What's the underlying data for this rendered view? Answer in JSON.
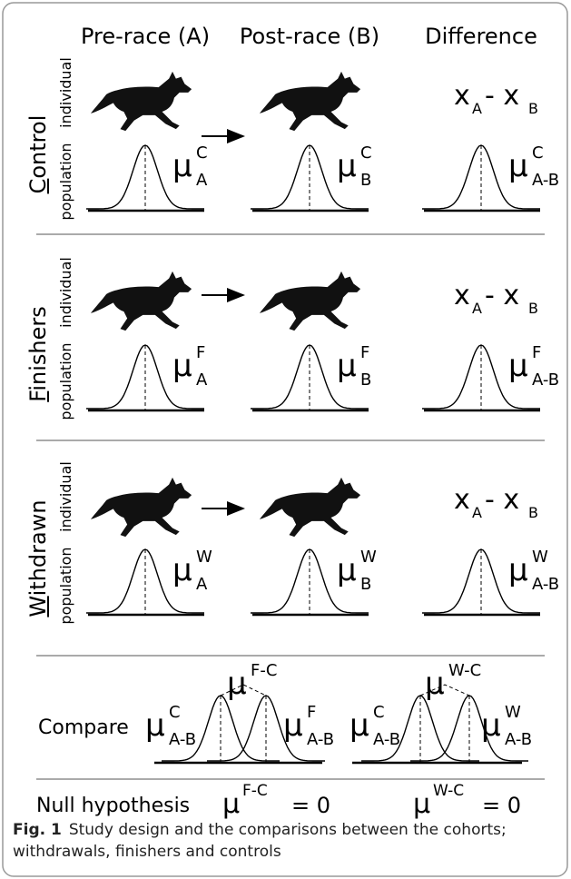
{
  "columns": [
    "Pre-race (A)",
    "Post-race (B)",
    "Difference"
  ],
  "rows": [
    {
      "name": "Control",
      "side_labels": [
        "population",
        "individual"
      ],
      "difference": {
        "var_a": "x",
        "sub_a": "A",
        "operator": "- x",
        "sub_b": "B"
      },
      "means": [
        {
          "symbol": "μ",
          "sup": "C",
          "sub": "A"
        },
        {
          "symbol": "μ",
          "sup": "C",
          "sub": "B"
        },
        {
          "symbol": "μ",
          "sup": "C",
          "sub": "A-B"
        }
      ]
    },
    {
      "name": "Finishers",
      "side_labels": [
        "population",
        "individual"
      ],
      "difference": {
        "var_a": "x",
        "sub_a": "A",
        "operator": "- x",
        "sub_b": "B"
      },
      "means": [
        {
          "symbol": "μ",
          "sup": "F",
          "sub": "A"
        },
        {
          "symbol": "μ",
          "sup": "F",
          "sub": "B"
        },
        {
          "symbol": "μ",
          "sup": "F",
          "sub": "A-B"
        }
      ]
    },
    {
      "name": "Withdrawn",
      "side_labels": [
        "population",
        "individual"
      ],
      "difference": {
        "var_a": "x",
        "sub_a": "A",
        "operator": "- x",
        "sub_b": "B"
      },
      "means": [
        {
          "symbol": "μ",
          "sup": "W",
          "sub": "A"
        },
        {
          "symbol": "μ",
          "sup": "W",
          "sub": "B"
        },
        {
          "symbol": "μ",
          "sup": "W",
          "sub": "A-B"
        }
      ]
    }
  ],
  "compare": {
    "label": "Compare",
    "groups": [
      {
        "left": {
          "symbol": "μ",
          "sup": "C",
          "sub": "A-B"
        },
        "right": {
          "symbol": "μ",
          "sup": "F",
          "sub": "A-B"
        },
        "delta": {
          "symbol": "μ",
          "sup": "F-C"
        }
      },
      {
        "left": {
          "symbol": "μ",
          "sup": "C",
          "sub": "A-B"
        },
        "right": {
          "symbol": "μ",
          "sup": "W",
          "sub": "A-B"
        },
        "delta": {
          "symbol": "μ",
          "sup": "W-C"
        }
      }
    ]
  },
  "null_hypothesis": {
    "label": "Null hypothesis",
    "statements": [
      {
        "symbol": "μ",
        "sup": "F-C",
        "equals": "= 0"
      },
      {
        "symbol": "μ",
        "sup": "W-C",
        "equals": "= 0"
      }
    ]
  },
  "caption": {
    "label": "Fig. 1",
    "text": "Study design and the comparisons between the cohorts; withdrawals, finishers and controls"
  }
}
